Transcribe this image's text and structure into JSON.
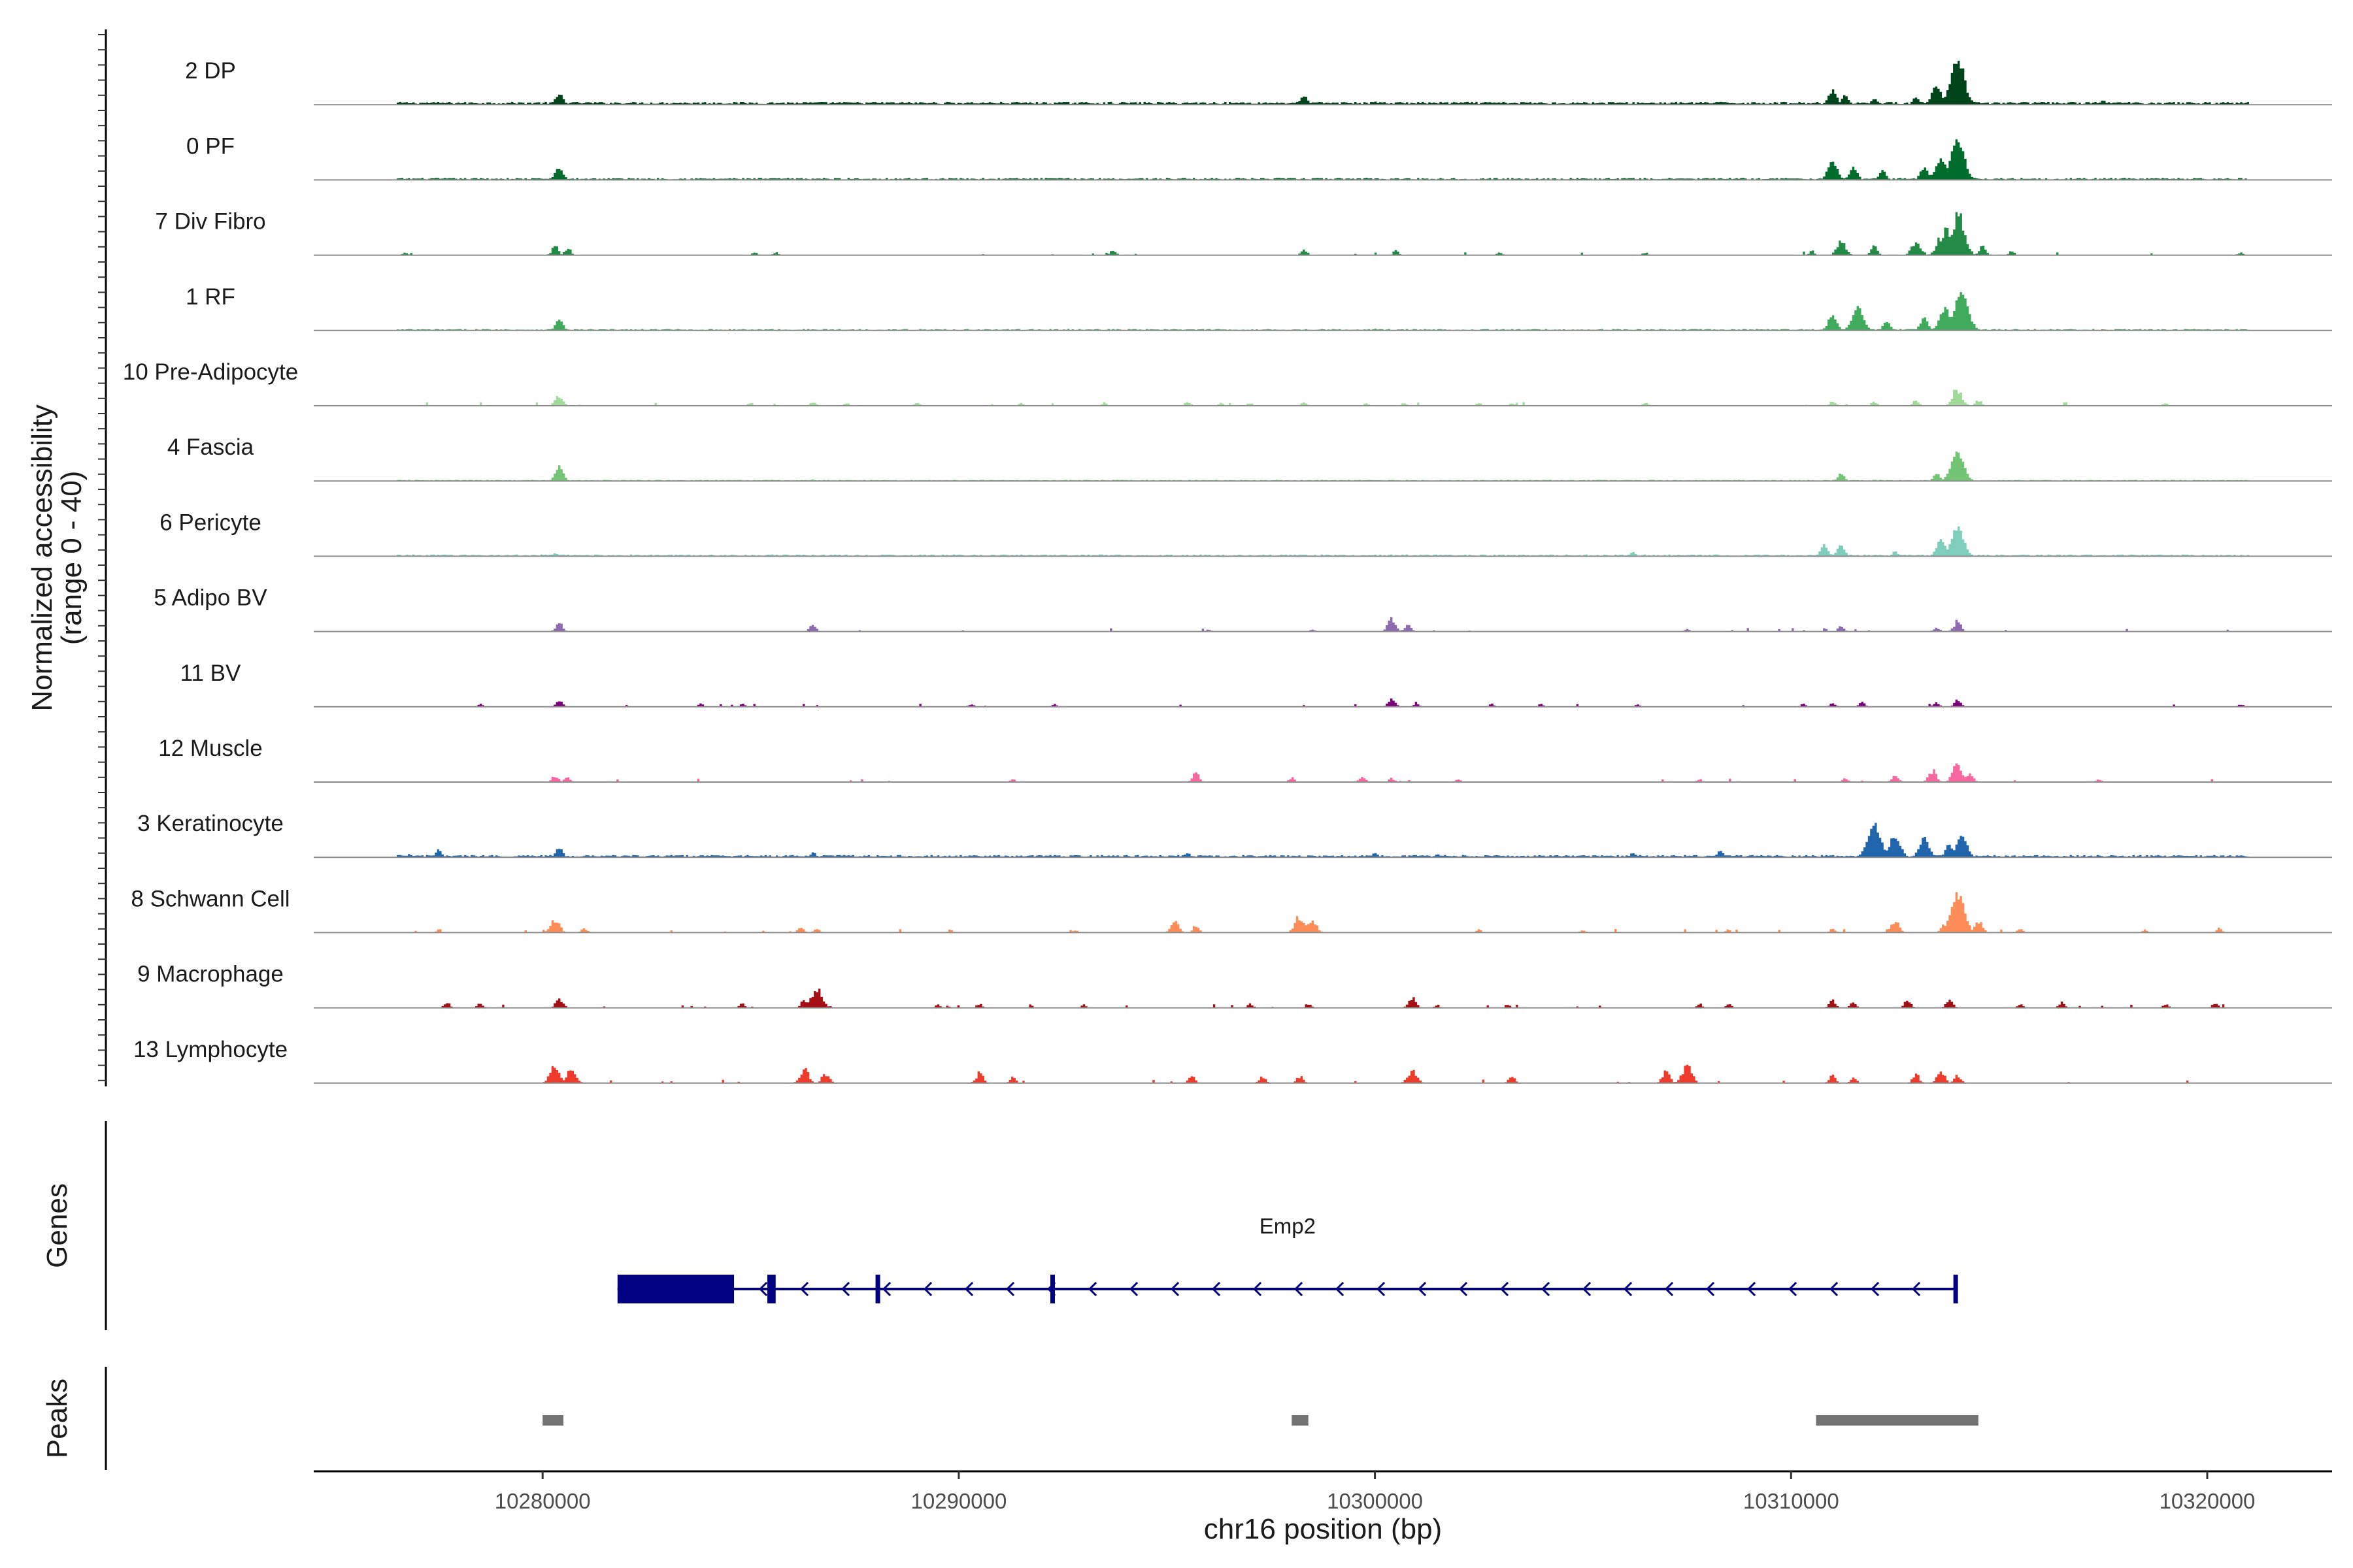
{
  "chart_data": {
    "type": "area",
    "title": "",
    "region": {
      "chromosome": "chr16",
      "start": 10274500,
      "end": 10323000
    },
    "ylabel": "Normalized accessibility",
    "ylabel_range": "(range 0 - 40)",
    "ylim": [
      0,
      40
    ],
    "xlabel": "chr16 position (bp)",
    "x_ticks": [
      10280000,
      10290000,
      10300000,
      10310000,
      10320000
    ],
    "x_tick_labels": [
      "10280000",
      "10290000",
      "10300000",
      "10310000",
      "10320000"
    ],
    "series": [
      {
        "name": "2 DP",
        "color": "#00441b",
        "mode": "continuous",
        "background": 1.0,
        "peaks": [
          [
            10280400,
            7
          ],
          [
            10282000,
            1
          ],
          [
            10287000,
            1
          ],
          [
            10298300,
            6
          ],
          [
            10300000,
            2
          ],
          [
            10301200,
            1
          ],
          [
            10311000,
            9
          ],
          [
            10311300,
            6
          ],
          [
            10312000,
            4
          ],
          [
            10313000,
            5
          ],
          [
            10313500,
            12
          ],
          [
            10314000,
            30
          ],
          [
            10317500,
            3
          ],
          [
            10319000,
            1
          ]
        ]
      },
      {
        "name": "0 PF",
        "color": "#006d2c",
        "mode": "continuous",
        "background": 0.7,
        "peaks": [
          [
            10280400,
            8
          ],
          [
            10299800,
            1.5
          ],
          [
            10311000,
            12
          ],
          [
            10311500,
            8
          ],
          [
            10312200,
            6
          ],
          [
            10313200,
            8
          ],
          [
            10313600,
            14
          ],
          [
            10314000,
            25
          ],
          [
            10318000,
            1
          ]
        ]
      },
      {
        "name": "7 Div Fibro",
        "color": "#238b45",
        "mode": "sparse",
        "peaks": [
          [
            10276700,
            2
          ],
          [
            10280300,
            6
          ],
          [
            10280600,
            5
          ],
          [
            10285100,
            2
          ],
          [
            10285600,
            2
          ],
          [
            10293700,
            3
          ],
          [
            10298300,
            4
          ],
          [
            10300500,
            3
          ],
          [
            10303000,
            2
          ],
          [
            10306500,
            2
          ],
          [
            10310500,
            3
          ],
          [
            10311200,
            10
          ],
          [
            10312000,
            6
          ],
          [
            10313000,
            10
          ],
          [
            10313700,
            18
          ],
          [
            10314000,
            28
          ],
          [
            10314600,
            6
          ],
          [
            10315300,
            3
          ],
          [
            10320800,
            2
          ]
        ]
      },
      {
        "name": "1 RF",
        "color": "#41ab5d",
        "mode": "continuous",
        "background": 0.5,
        "peaks": [
          [
            10280400,
            7
          ],
          [
            10300000,
            1
          ],
          [
            10311000,
            10
          ],
          [
            10311600,
            15
          ],
          [
            10312300,
            6
          ],
          [
            10313200,
            8
          ],
          [
            10313700,
            14
          ],
          [
            10314100,
            24
          ]
        ]
      },
      {
        "name": "10 Pre-Adipocyte",
        "color": "#a1d99b",
        "mode": "sparse",
        "peaks": [
          [
            10280400,
            8
          ],
          [
            10285000,
            2
          ],
          [
            10286500,
            3
          ],
          [
            10287300,
            2
          ],
          [
            10289000,
            2
          ],
          [
            10291500,
            2
          ],
          [
            10293500,
            2
          ],
          [
            10295500,
            3
          ],
          [
            10296300,
            2
          ],
          [
            10297000,
            2
          ],
          [
            10298300,
            3
          ],
          [
            10299800,
            2
          ],
          [
            10300700,
            2
          ],
          [
            10302500,
            2
          ],
          [
            10303300,
            2
          ],
          [
            10306500,
            2
          ],
          [
            10311000,
            3
          ],
          [
            10312000,
            3
          ],
          [
            10313000,
            4
          ],
          [
            10314000,
            12
          ],
          [
            10314500,
            4
          ],
          [
            10319000,
            2
          ]
        ]
      },
      {
        "name": "4 Fascia",
        "color": "#74c476",
        "mode": "continuous",
        "background": 0.4,
        "peaks": [
          [
            10280400,
            9
          ],
          [
            10286500,
            1
          ],
          [
            10311200,
            5
          ],
          [
            10313500,
            5
          ],
          [
            10314000,
            18
          ]
        ]
      },
      {
        "name": "6 Pericyte",
        "color": "#7fcdbb",
        "mode": "continuous",
        "background": 0.6,
        "peaks": [
          [
            10280300,
            2
          ],
          [
            10292500,
            1
          ],
          [
            10306200,
            3
          ],
          [
            10310800,
            7
          ],
          [
            10311200,
            7
          ],
          [
            10312500,
            3
          ],
          [
            10313600,
            10
          ],
          [
            10314000,
            18
          ]
        ]
      },
      {
        "name": "5 Adipo BV",
        "color": "#8c6bb1",
        "mode": "sparse",
        "peaks": [
          [
            10280400,
            6
          ],
          [
            10286500,
            5
          ],
          [
            10296000,
            1.5
          ],
          [
            10298500,
            2
          ],
          [
            10300400,
            9
          ],
          [
            10300800,
            5
          ],
          [
            10307500,
            2
          ],
          [
            10311200,
            4
          ],
          [
            10313500,
            3
          ],
          [
            10314000,
            7
          ]
        ]
      },
      {
        "name": "11 BV",
        "color": "#7a0177",
        "mode": "sparse",
        "peaks": [
          [
            10278500,
            2
          ],
          [
            10280400,
            5
          ],
          [
            10283800,
            2
          ],
          [
            10284800,
            2
          ],
          [
            10290300,
            2
          ],
          [
            10292300,
            2
          ],
          [
            10300400,
            6
          ],
          [
            10301000,
            3
          ],
          [
            10302800,
            2
          ],
          [
            10304000,
            2
          ],
          [
            10306300,
            2
          ],
          [
            10310300,
            2
          ],
          [
            10311000,
            3
          ],
          [
            10311700,
            4
          ],
          [
            10313500,
            3
          ],
          [
            10314000,
            5
          ],
          [
            10320800,
            2
          ]
        ]
      },
      {
        "name": "12 Muscle",
        "color": "#f768a1",
        "mode": "sparse",
        "peaks": [
          [
            10280300,
            5
          ],
          [
            10280600,
            4
          ],
          [
            10291300,
            2
          ],
          [
            10295700,
            6
          ],
          [
            10298000,
            3
          ],
          [
            10299700,
            4
          ],
          [
            10300400,
            3
          ],
          [
            10302000,
            2
          ],
          [
            10307800,
            2
          ],
          [
            10311300,
            3
          ],
          [
            10312500,
            5
          ],
          [
            10313400,
            8
          ],
          [
            10314000,
            12
          ],
          [
            10314300,
            6
          ],
          [
            10317400,
            2
          ]
        ]
      },
      {
        "name": "3 Keratinocyte",
        "color": "#2166ac",
        "mode": "continuous",
        "background": 0.8,
        "peaks": [
          [
            10276800,
            2
          ],
          [
            10277500,
            5
          ],
          [
            10280400,
            6
          ],
          [
            10286500,
            3
          ],
          [
            10295500,
            3
          ],
          [
            10300000,
            3
          ],
          [
            10301500,
            2
          ],
          [
            10306200,
            3
          ],
          [
            10308300,
            4
          ],
          [
            10312000,
            20
          ],
          [
            10312500,
            14
          ],
          [
            10313200,
            12
          ],
          [
            10313800,
            8
          ],
          [
            10314100,
            14
          ],
          [
            10320000,
            1
          ]
        ]
      },
      {
        "name": "8 Schwann Cell",
        "color": "#fc8d59",
        "mode": "sparse",
        "peaks": [
          [
            10277500,
            2
          ],
          [
            10280300,
            10
          ],
          [
            10281000,
            3
          ],
          [
            10286200,
            4
          ],
          [
            10286600,
            3
          ],
          [
            10289800,
            2
          ],
          [
            10292800,
            2
          ],
          [
            10295200,
            8
          ],
          [
            10295700,
            5
          ],
          [
            10298200,
            12
          ],
          [
            10298500,
            9
          ],
          [
            10302500,
            2
          ],
          [
            10305000,
            2
          ],
          [
            10308500,
            2
          ],
          [
            10311000,
            3
          ],
          [
            10312500,
            8
          ],
          [
            10313700,
            6
          ],
          [
            10314000,
            26
          ],
          [
            10314500,
            8
          ],
          [
            10315500,
            3
          ],
          [
            10318500,
            2
          ],
          [
            10320300,
            3
          ]
        ]
      },
      {
        "name": "9 Macrophage",
        "color": "#a50f15",
        "mode": "sparse",
        "peaks": [
          [
            10277700,
            4
          ],
          [
            10278500,
            3
          ],
          [
            10280400,
            7
          ],
          [
            10284800,
            3
          ],
          [
            10286600,
            14
          ],
          [
            10286300,
            6
          ],
          [
            10289500,
            2
          ],
          [
            10290500,
            3
          ],
          [
            10293000,
            2
          ],
          [
            10297000,
            3
          ],
          [
            10298400,
            3
          ],
          [
            10300900,
            7
          ],
          [
            10301500,
            2
          ],
          [
            10303200,
            2
          ],
          [
            10307800,
            3
          ],
          [
            10308500,
            3
          ],
          [
            10311000,
            5
          ],
          [
            10311500,
            4
          ],
          [
            10312800,
            5
          ],
          [
            10313800,
            6
          ],
          [
            10315500,
            3
          ],
          [
            10316500,
            4
          ],
          [
            10319000,
            3
          ],
          [
            10320200,
            4
          ]
        ]
      },
      {
        "name": "13 Lymphocyte",
        "color": "#ef3b2c",
        "mode": "sparse",
        "peaks": [
          [
            10280300,
            12
          ],
          [
            10280700,
            10
          ],
          [
            10286300,
            10
          ],
          [
            10286800,
            7
          ],
          [
            10290500,
            7
          ],
          [
            10291300,
            4
          ],
          [
            10295600,
            5
          ],
          [
            10297300,
            5
          ],
          [
            10298200,
            5
          ],
          [
            10300900,
            10
          ],
          [
            10303300,
            5
          ],
          [
            10307000,
            8
          ],
          [
            10307500,
            12
          ],
          [
            10311000,
            5
          ],
          [
            10311500,
            4
          ],
          [
            10313000,
            6
          ],
          [
            10313600,
            8
          ],
          [
            10314000,
            6
          ]
        ]
      }
    ],
    "genes": {
      "label": "Genes",
      "items": [
        {
          "name": "Emp2",
          "strand": "-",
          "start": 10281800,
          "end": 10314000,
          "color": "#000080",
          "utr": [
            [
              10281800,
              10284600
            ]
          ],
          "exons": [
            [
              10285400,
              10285600
            ],
            [
              10288000,
              10288100
            ],
            [
              10292200,
              10292300
            ],
            [
              10313900,
              10314000
            ]
          ]
        }
      ]
    },
    "peaks_track": {
      "label": "Peaks",
      "color": "#737373",
      "regions": [
        [
          10280000,
          10280500
        ],
        [
          10298000,
          10298400
        ],
        [
          10310600,
          10314500
        ]
      ]
    }
  }
}
